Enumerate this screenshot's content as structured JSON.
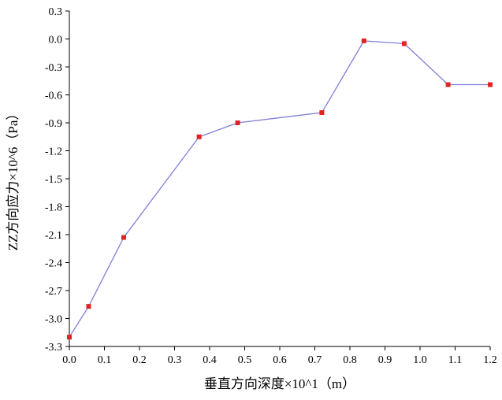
{
  "chart_data": {
    "type": "line",
    "title": "",
    "xlabel": "垂直方向深度×10^1（m）",
    "ylabel": "ZZ方向应力×10^6（Pa）",
    "x": [
      0.0,
      0.055,
      0.155,
      0.37,
      0.48,
      0.72,
      0.84,
      0.955,
      1.08,
      1.2
    ],
    "y": [
      -3.2,
      -2.87,
      -2.13,
      -1.05,
      -0.9,
      -0.79,
      -0.02,
      -0.05,
      -0.49,
      -0.49
    ],
    "xlim": [
      0.0,
      1.2
    ],
    "ylim": [
      -3.3,
      0.3
    ],
    "x_ticks": [
      0.0,
      0.1,
      0.2,
      0.3,
      0.4,
      0.5,
      0.6,
      0.7,
      0.8,
      0.9,
      1.0,
      1.1,
      1.2
    ],
    "y_ticks": [
      0.3,
      0.0,
      -0.3,
      -0.6,
      -0.9,
      -1.2,
      -1.5,
      -1.8,
      -2.1,
      -2.4,
      -2.7,
      -3.0,
      -3.3
    ],
    "tick_decimals": 1,
    "grid": false,
    "legend": "none",
    "line_color": "#7e7ed8",
    "marker": "square",
    "marker_color": "#e32222",
    "axis_color": "#000000"
  }
}
